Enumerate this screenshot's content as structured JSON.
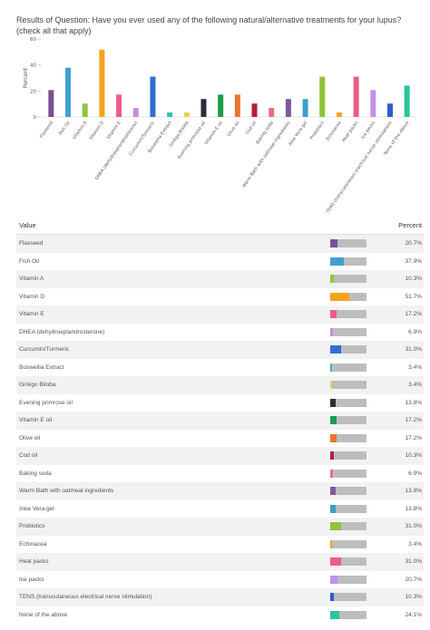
{
  "title": "Results of Question: Have you ever used any of the following natural/alternative treatments for your lupus? (check all that apply)",
  "table_header": {
    "value": "Value",
    "percent": "Percent"
  },
  "chart_data": {
    "type": "bar",
    "ylabel": "Percent",
    "ylim": [
      0,
      60
    ],
    "yticks": [
      0,
      20,
      40,
      60
    ],
    "grid": false,
    "categories": [
      "Flaxseed",
      "Fish Oil",
      "Vitamin A",
      "Vitamin D",
      "Vitamin E",
      "DHEA (dehydroeplandrosterone)",
      "Curcumin/Turmeric",
      "Boswellia Extract",
      "Ginkgo Biloba",
      "Evening primrose oil",
      "Vitamin E oil",
      "Olive oil",
      "Cod oil",
      "Baking soda",
      "Warm Bath with oatmeal ingredients",
      "Aloe Vera gel",
      "Probiotics",
      "Echinacea",
      "Heat packs",
      "Ice packs",
      "TENS (transcutaneous electrical nerve stimulation)",
      "None of the above"
    ],
    "values": [
      20.7,
      37.9,
      10.3,
      51.7,
      17.2,
      6.9,
      31.0,
      3.4,
      3.4,
      13.8,
      17.2,
      17.2,
      10.3,
      6.9,
      13.8,
      13.8,
      31.0,
      3.4,
      31.0,
      20.7,
      10.3,
      24.1
    ],
    "value_labels": [
      "20.7%",
      "37.9%",
      "10.3%",
      "51.7%",
      "17.2%",
      "6.9%",
      "31.0%",
      "3.4%",
      "3.4%",
      "13.8%",
      "17.2%",
      "17.2%",
      "10.3%",
      "6.9%",
      "13.8%",
      "13.8%",
      "31.0%",
      "3.4%",
      "31.0%",
      "20.7%",
      "10.3%",
      "24.1%"
    ],
    "colors": [
      "#7b4f96",
      "#3ea0d2",
      "#8ec63f",
      "#f7a31c",
      "#ee5b8b",
      "#c58fe0",
      "#2f6fd6",
      "#2bc4b0",
      "#f5cf45",
      "#2c2f3a",
      "#1f9b4c",
      "#ea7330",
      "#b51f3c",
      "#f06a8a",
      "#7b5a9c",
      "#3aa0c9",
      "#8fc33a",
      "#f7a31c",
      "#ee5b85",
      "#c491e8",
      "#2f5fc6",
      "#2bc49a"
    ]
  }
}
